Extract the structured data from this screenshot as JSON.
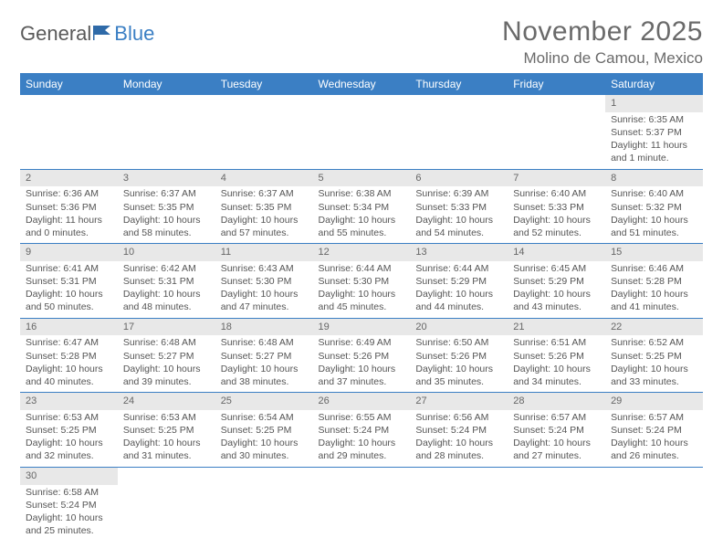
{
  "logo": {
    "general": "General",
    "blue": "Blue"
  },
  "title": "November 2025",
  "location": "Molino de Camou, Mexico",
  "weekday_headers": [
    "Sunday",
    "Monday",
    "Tuesday",
    "Wednesday",
    "Thursday",
    "Friday",
    "Saturday"
  ],
  "colors": {
    "header_bg": "#3b7fc4",
    "header_text": "#ffffff",
    "daynum_bg": "#e8e8e8",
    "border": "#3b7fc4",
    "body_text": "#555555"
  },
  "weeks": [
    [
      null,
      null,
      null,
      null,
      null,
      null,
      {
        "n": "1",
        "sr": "Sunrise: 6:35 AM",
        "ss": "Sunset: 5:37 PM",
        "dl": "Daylight: 11 hours and 1 minute."
      }
    ],
    [
      {
        "n": "2",
        "sr": "Sunrise: 6:36 AM",
        "ss": "Sunset: 5:36 PM",
        "dl": "Daylight: 11 hours and 0 minutes."
      },
      {
        "n": "3",
        "sr": "Sunrise: 6:37 AM",
        "ss": "Sunset: 5:35 PM",
        "dl": "Daylight: 10 hours and 58 minutes."
      },
      {
        "n": "4",
        "sr": "Sunrise: 6:37 AM",
        "ss": "Sunset: 5:35 PM",
        "dl": "Daylight: 10 hours and 57 minutes."
      },
      {
        "n": "5",
        "sr": "Sunrise: 6:38 AM",
        "ss": "Sunset: 5:34 PM",
        "dl": "Daylight: 10 hours and 55 minutes."
      },
      {
        "n": "6",
        "sr": "Sunrise: 6:39 AM",
        "ss": "Sunset: 5:33 PM",
        "dl": "Daylight: 10 hours and 54 minutes."
      },
      {
        "n": "7",
        "sr": "Sunrise: 6:40 AM",
        "ss": "Sunset: 5:33 PM",
        "dl": "Daylight: 10 hours and 52 minutes."
      },
      {
        "n": "8",
        "sr": "Sunrise: 6:40 AM",
        "ss": "Sunset: 5:32 PM",
        "dl": "Daylight: 10 hours and 51 minutes."
      }
    ],
    [
      {
        "n": "9",
        "sr": "Sunrise: 6:41 AM",
        "ss": "Sunset: 5:31 PM",
        "dl": "Daylight: 10 hours and 50 minutes."
      },
      {
        "n": "10",
        "sr": "Sunrise: 6:42 AM",
        "ss": "Sunset: 5:31 PM",
        "dl": "Daylight: 10 hours and 48 minutes."
      },
      {
        "n": "11",
        "sr": "Sunrise: 6:43 AM",
        "ss": "Sunset: 5:30 PM",
        "dl": "Daylight: 10 hours and 47 minutes."
      },
      {
        "n": "12",
        "sr": "Sunrise: 6:44 AM",
        "ss": "Sunset: 5:30 PM",
        "dl": "Daylight: 10 hours and 45 minutes."
      },
      {
        "n": "13",
        "sr": "Sunrise: 6:44 AM",
        "ss": "Sunset: 5:29 PM",
        "dl": "Daylight: 10 hours and 44 minutes."
      },
      {
        "n": "14",
        "sr": "Sunrise: 6:45 AM",
        "ss": "Sunset: 5:29 PM",
        "dl": "Daylight: 10 hours and 43 minutes."
      },
      {
        "n": "15",
        "sr": "Sunrise: 6:46 AM",
        "ss": "Sunset: 5:28 PM",
        "dl": "Daylight: 10 hours and 41 minutes."
      }
    ],
    [
      {
        "n": "16",
        "sr": "Sunrise: 6:47 AM",
        "ss": "Sunset: 5:28 PM",
        "dl": "Daylight: 10 hours and 40 minutes."
      },
      {
        "n": "17",
        "sr": "Sunrise: 6:48 AM",
        "ss": "Sunset: 5:27 PM",
        "dl": "Daylight: 10 hours and 39 minutes."
      },
      {
        "n": "18",
        "sr": "Sunrise: 6:48 AM",
        "ss": "Sunset: 5:27 PM",
        "dl": "Daylight: 10 hours and 38 minutes."
      },
      {
        "n": "19",
        "sr": "Sunrise: 6:49 AM",
        "ss": "Sunset: 5:26 PM",
        "dl": "Daylight: 10 hours and 37 minutes."
      },
      {
        "n": "20",
        "sr": "Sunrise: 6:50 AM",
        "ss": "Sunset: 5:26 PM",
        "dl": "Daylight: 10 hours and 35 minutes."
      },
      {
        "n": "21",
        "sr": "Sunrise: 6:51 AM",
        "ss": "Sunset: 5:26 PM",
        "dl": "Daylight: 10 hours and 34 minutes."
      },
      {
        "n": "22",
        "sr": "Sunrise: 6:52 AM",
        "ss": "Sunset: 5:25 PM",
        "dl": "Daylight: 10 hours and 33 minutes."
      }
    ],
    [
      {
        "n": "23",
        "sr": "Sunrise: 6:53 AM",
        "ss": "Sunset: 5:25 PM",
        "dl": "Daylight: 10 hours and 32 minutes."
      },
      {
        "n": "24",
        "sr": "Sunrise: 6:53 AM",
        "ss": "Sunset: 5:25 PM",
        "dl": "Daylight: 10 hours and 31 minutes."
      },
      {
        "n": "25",
        "sr": "Sunrise: 6:54 AM",
        "ss": "Sunset: 5:25 PM",
        "dl": "Daylight: 10 hours and 30 minutes."
      },
      {
        "n": "26",
        "sr": "Sunrise: 6:55 AM",
        "ss": "Sunset: 5:24 PM",
        "dl": "Daylight: 10 hours and 29 minutes."
      },
      {
        "n": "27",
        "sr": "Sunrise: 6:56 AM",
        "ss": "Sunset: 5:24 PM",
        "dl": "Daylight: 10 hours and 28 minutes."
      },
      {
        "n": "28",
        "sr": "Sunrise: 6:57 AM",
        "ss": "Sunset: 5:24 PM",
        "dl": "Daylight: 10 hours and 27 minutes."
      },
      {
        "n": "29",
        "sr": "Sunrise: 6:57 AM",
        "ss": "Sunset: 5:24 PM",
        "dl": "Daylight: 10 hours and 26 minutes."
      }
    ],
    [
      {
        "n": "30",
        "sr": "Sunrise: 6:58 AM",
        "ss": "Sunset: 5:24 PM",
        "dl": "Daylight: 10 hours and 25 minutes."
      },
      null,
      null,
      null,
      null,
      null,
      null
    ]
  ]
}
